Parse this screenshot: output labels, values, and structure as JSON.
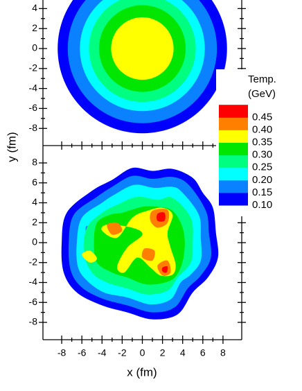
{
  "chart_data": [
    {
      "type": "contour",
      "xlim": [
        -9.86,
        9.86
      ],
      "ylim": [
        -9.72,
        4.86
      ],
      "yticks": [
        -8,
        -6,
        -4,
        -2,
        0,
        2,
        4
      ],
      "contours": [
        {
          "level": 0.1,
          "radius": 8.4
        },
        {
          "level": 0.15,
          "radius": 7.4
        },
        {
          "level": 0.2,
          "radius": 6.2
        },
        {
          "level": 0.25,
          "radius": 5.3
        },
        {
          "level": 0.3,
          "radius": 4.3
        },
        {
          "level": 0.35,
          "radius": 3.1
        }
      ],
      "legend": {
        "title": [
          "Temp.",
          "(GeV)"
        ],
        "levels": [
          {
            "value": 0.1,
            "label": "0.10"
          },
          0.15,
          {
            "value": 0.2,
            "label": "0.20"
          },
          0.25,
          {
            "value": 0.3,
            "label": "0.30"
          },
          0.35,
          {
            "value": 0.4,
            "label": "0.40"
          },
          0.45
        ],
        "colors": [
          "#0000ff",
          "#0a82ff",
          "#00ffff",
          "#00ff80",
          "#00e600",
          "#ffff00",
          "#ff8000",
          "#ff0000"
        ]
      }
    },
    {
      "type": "contour",
      "xlabel": "x (fm)",
      "ylabel": "y (fm)",
      "xlim": [
        -9.86,
        9.86
      ],
      "ylim": [
        -9.74,
        9.74
      ],
      "xticks": [
        -8,
        -6,
        -4,
        -2,
        0,
        2,
        4,
        6,
        8
      ],
      "yticks": [
        -8,
        -6,
        -4,
        -2,
        0,
        2,
        4,
        6,
        8
      ],
      "contours": [
        {
          "level": 0.1,
          "x": [
            -3,
            -1,
            1,
            3,
            5,
            6,
            7,
            7.3,
            7.5,
            6.5,
            5,
            3.5,
            1,
            -1.5,
            -4,
            -6.5,
            -7.8,
            -8,
            -7.5,
            -5
          ],
          "y": [
            6.3,
            7.5,
            7.2,
            7.4,
            6.5,
            5,
            3.5,
            1,
            -1.5,
            -3.5,
            -5,
            -7.2,
            -7.7,
            -7,
            -6.3,
            -5,
            -3,
            0,
            3,
            5.2
          ]
        },
        {
          "level": 0.15,
          "x": [
            -3,
            -1,
            1,
            3,
            4.6,
            6.3,
            6.6,
            6.8,
            5.8,
            4.5,
            3.2,
            1,
            -1.5,
            -4,
            -6,
            -7.1,
            -7.3,
            -6.8,
            -4.5
          ],
          "y": [
            5.6,
            6.7,
            6.4,
            6.6,
            5.8,
            3.2,
            1,
            -1.5,
            -3.3,
            -4.6,
            -6.5,
            -7,
            -6.3,
            -5.6,
            -4.5,
            -2.8,
            0,
            2.8,
            4.6
          ]
        },
        {
          "level": 0.2,
          "x": [
            -2.8,
            -0.8,
            1.2,
            3,
            4,
            5.6,
            5.8,
            5.8,
            4.8,
            3.8,
            2.8,
            0.8,
            -1.5,
            -3.8,
            -5.5,
            -6.4,
            -6.5,
            -6,
            -4
          ],
          "y": [
            4.8,
            5.8,
            5.5,
            5.6,
            5,
            2.8,
            0.5,
            -1.8,
            -3.2,
            -4,
            -5.7,
            -6.2,
            -5.5,
            -5,
            -3.8,
            -2.4,
            0,
            2.5,
            4
          ]
        },
        {
          "level": 0.15,
          "x": [
            -5.6,
            -5,
            -4.9,
            -5.5
          ],
          "y": [
            1.6,
            1.5,
            0.6,
            0.5
          ]
        },
        {
          "level": 0.25,
          "x": [
            -2.5,
            -0.5,
            1.5,
            3,
            4.8,
            5,
            4.8,
            3.5,
            2.5,
            0.5,
            -1.5,
            -3.5,
            -5,
            -5.8,
            -5.5,
            -4
          ],
          "y": [
            3.8,
            4.6,
            4.3,
            4.5,
            2.5,
            0,
            -2,
            -3.5,
            -4.8,
            -5.2,
            -4.6,
            -4,
            -3,
            -1,
            1.5,
            3
          ]
        },
        {
          "level": 0.3,
          "x": [
            -2,
            0,
            1.5,
            3,
            4,
            4.2,
            3.8,
            2.8,
            0.5,
            -1.5,
            -3,
            -4.5,
            -4.8,
            -4.5,
            -3.2
          ],
          "y": [
            3,
            3.6,
            3.6,
            3.2,
            1.5,
            -0.5,
            -2.5,
            -3.8,
            -4.2,
            -3.5,
            -3,
            -2,
            0,
            2,
            2.8
          ]
        },
        {
          "level": 0.35,
          "x": [
            -1,
            0.5,
            2,
            3,
            2.5,
            2.8,
            3.3,
            3,
            1.8,
            0.8,
            -0.5,
            -1.8,
            -2.5,
            -1.5,
            0,
            -1,
            -3.5,
            -4,
            -2.5
          ],
          "y": [
            2.5,
            3.2,
            3.5,
            2.8,
            1,
            -0.5,
            -2.2,
            -3.2,
            -3.3,
            -2.5,
            -1.5,
            -3,
            -2.4,
            -0.5,
            0.8,
            1.5,
            1.8,
            1.2,
            0.5
          ]
        },
        {
          "level": 0.35,
          "x": [
            -6,
            -5.2,
            -4.5,
            -5.2
          ],
          "y": [
            -1.2,
            -0.8,
            -1.6,
            -2
          ]
        },
        {
          "level": 0.4,
          "x": [
            -3.5,
            -2.5,
            -2,
            -3
          ],
          "y": [
            1.8,
            2,
            1.2,
            0.8
          ]
        },
        {
          "level": 0.4,
          "x": [
            1,
            2.5,
            2.5,
            1.5,
            0.8
          ],
          "y": [
            3.2,
            3.3,
            2,
            1.5,
            2.2
          ]
        },
        {
          "level": 0.4,
          "x": [
            0.2,
            1.2,
            1,
            0
          ],
          "y": [
            -0.6,
            -0.8,
            -1.8,
            -1.5
          ]
        },
        {
          "level": 0.4,
          "x": [
            1.5,
            2.5,
            2.8,
            2
          ],
          "y": [
            -2.3,
            -1.8,
            -3,
            -3.3
          ]
        },
        {
          "level": 0.45,
          "x": [
            1.5,
            2.2,
            2.2,
            1.5
          ],
          "y": [
            2.9,
            3,
            2.2,
            2.2
          ]
        },
        {
          "level": 0.45,
          "x": [
            2,
            2.5,
            2.4,
            2
          ],
          "y": [
            -2.5,
            -2.4,
            -3,
            -2.9
          ]
        }
      ]
    }
  ]
}
